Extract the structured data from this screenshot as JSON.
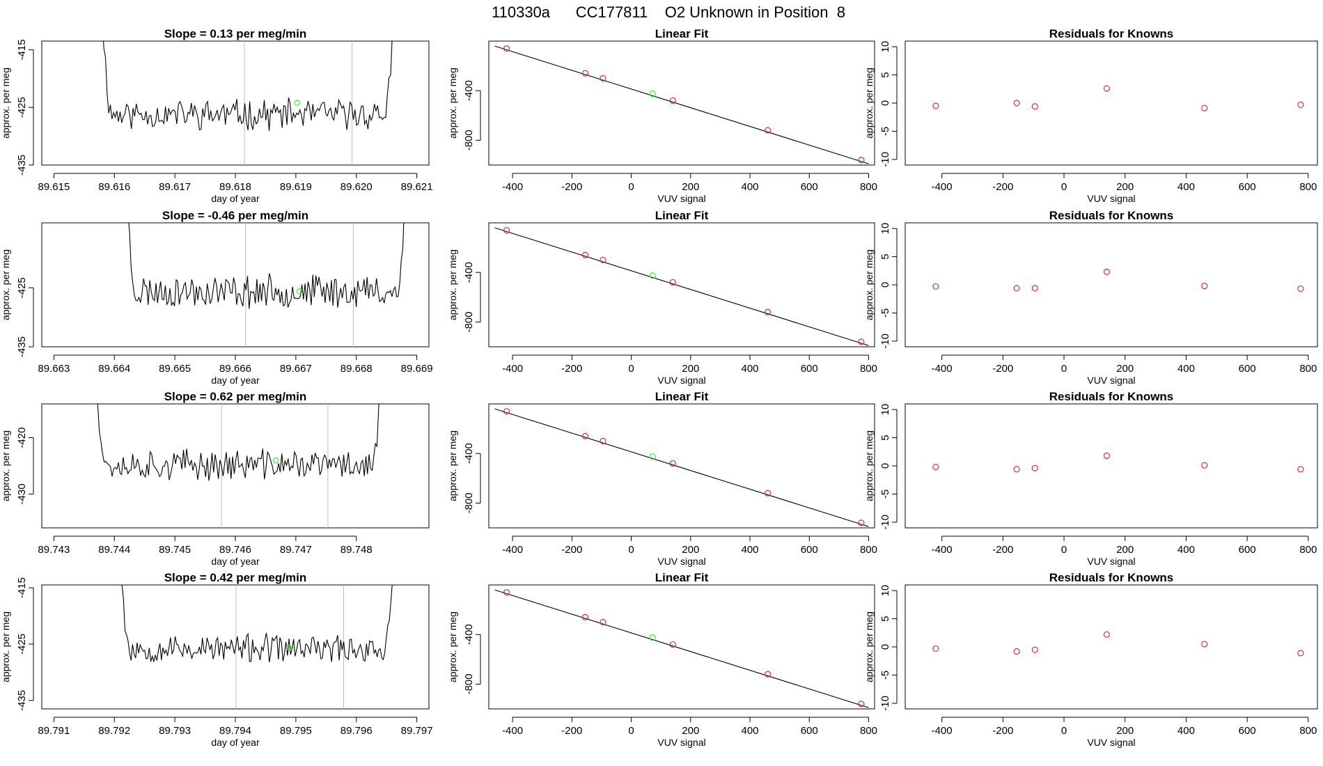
{
  "page_title": "110330a      CC177811    O2 Unknown in Position  8",
  "colors": {
    "trace": "#000000",
    "known_points": "#cc3333",
    "unknown_point": "#33ee33",
    "flag_lines": "#bbbbbb"
  },
  "chart_data": [
    {
      "type": "line",
      "title": "Slope =  0.13  per meg/min",
      "xlabel": "day of year",
      "ylabel": "approx. per meg",
      "xlim": [
        89.6148,
        89.6212
      ],
      "ylim": [
        -435,
        -413.5
      ],
      "xticks": [
        89.615,
        89.616,
        89.617,
        89.618,
        89.619,
        89.62,
        89.621
      ],
      "xtick_labels": [
        "89.615",
        "89.616",
        "89.617",
        "89.618",
        "89.619",
        "89.620",
        "89.621"
      ],
      "yticks": [
        -415,
        -425,
        -435
      ],
      "ytick_labels": [
        "-415",
        "-425",
        "-435"
      ],
      "flag_lines_x": [
        89.61815,
        89.61993
      ],
      "trace_start": 89.6158,
      "trace_end": 89.62062,
      "trace_level": -426.2,
      "trace_noise": 2.2,
      "trace_seed": 11,
      "unknown_point": {
        "x": 89.61902,
        "y": -424.2
      }
    },
    {
      "type": "scatter",
      "title": "Linear Fit",
      "xlabel": "VUV signal",
      "ylabel": "approx. per meg",
      "xlim": [
        -480,
        820
      ],
      "ylim": [
        -1000,
        0
      ],
      "xticks": [
        -400,
        -200,
        0,
        200,
        400,
        600,
        800
      ],
      "xtick_labels": [
        "-400",
        "-200",
        "0",
        "200",
        "400",
        "600",
        "800"
      ],
      "yticks": [
        -400,
        -800
      ],
      "ytick_labels": [
        "-400",
        "-800"
      ],
      "fit_line": {
        "x": [
          -460,
          800
        ],
        "y": [
          -40,
          -990
        ]
      },
      "points": [
        {
          "x": -420,
          "y": -60
        },
        {
          "x": -155,
          "y": -260
        },
        {
          "x": -95,
          "y": -300
        },
        {
          "x": 140,
          "y": -480
        },
        {
          "x": 460,
          "y": -720
        },
        {
          "x": 775,
          "y": -960
        }
      ],
      "unknown_point": {
        "x": 72,
        "y": -425
      }
    },
    {
      "type": "scatter",
      "title": "Residuals for Knowns",
      "xlabel": "VUV signal",
      "ylabel": "approx. per meg",
      "xlim": [
        -520,
        830
      ],
      "ylim": [
        -11,
        11
      ],
      "xticks": [
        -400,
        -200,
        0,
        200,
        400,
        600,
        800
      ],
      "xtick_labels": [
        "-400",
        "-200",
        "0",
        "200",
        "400",
        "600",
        "800"
      ],
      "yticks": [
        10,
        5,
        0,
        -5,
        -10
      ],
      "ytick_labels": [
        "10",
        "5",
        "0",
        "-5",
        "-10"
      ],
      "points": [
        {
          "x": -420,
          "y": -0.5
        },
        {
          "x": -155,
          "y": 0.0
        },
        {
          "x": -95,
          "y": -0.6
        },
        {
          "x": 140,
          "y": 2.6
        },
        {
          "x": 460,
          "y": -0.9
        },
        {
          "x": 775,
          "y": -0.3
        }
      ]
    },
    {
      "type": "line",
      "title": "Slope =  -0.46  per meg/min",
      "xlabel": "day of year",
      "ylabel": "approx. per meg",
      "xlim": [
        89.6628,
        89.6692
      ],
      "ylim": [
        -435,
        -414
      ],
      "xticks": [
        89.663,
        89.664,
        89.665,
        89.666,
        89.667,
        89.668,
        89.669
      ],
      "xtick_labels": [
        "89.663",
        "89.664",
        "89.665",
        "89.666",
        "89.667",
        "89.668",
        "89.669"
      ],
      "yticks": [
        -425,
        -435
      ],
      "ytick_labels": [
        "-425",
        "-435"
      ],
      "flag_lines_x": [
        89.66617,
        89.66795
      ],
      "trace_start": 89.6642,
      "trace_end": 89.66882,
      "trace_level": -425.6,
      "trace_noise": 2.4,
      "trace_seed": 23,
      "unknown_point": {
        "x": 89.66706,
        "y": -425.6
      }
    },
    {
      "type": "scatter",
      "title": "Linear Fit",
      "xlabel": "VUV signal",
      "ylabel": "approx. per meg",
      "xlim": [
        -480,
        820
      ],
      "ylim": [
        -1000,
        0
      ],
      "xticks": [
        -400,
        -200,
        0,
        200,
        400,
        600,
        800
      ],
      "xtick_labels": [
        "-400",
        "-200",
        "0",
        "200",
        "400",
        "600",
        "800"
      ],
      "yticks": [
        -400,
        -800
      ],
      "ytick_labels": [
        "-400",
        "-800"
      ],
      "fit_line": {
        "x": [
          -460,
          800
        ],
        "y": [
          -40,
          -990
        ]
      },
      "points": [
        {
          "x": -420,
          "y": -60
        },
        {
          "x": -155,
          "y": -260
        },
        {
          "x": -95,
          "y": -300
        },
        {
          "x": 140,
          "y": -480
        },
        {
          "x": 460,
          "y": -720
        },
        {
          "x": 775,
          "y": -960
        }
      ],
      "unknown_point": {
        "x": 72,
        "y": -425
      }
    },
    {
      "type": "scatter",
      "title": "Residuals for Knowns",
      "xlabel": "VUV signal",
      "ylabel": "approx. per meg",
      "xlim": [
        -520,
        830
      ],
      "ylim": [
        -11,
        11
      ],
      "xticks": [
        -400,
        -200,
        0,
        200,
        400,
        600,
        800
      ],
      "xtick_labels": [
        "-400",
        "-200",
        "0",
        "200",
        "400",
        "600",
        "800"
      ],
      "yticks": [
        10,
        5,
        0,
        -5,
        -10
      ],
      "ytick_labels": [
        "10",
        "5",
        "0",
        "-5",
        "-10"
      ],
      "points": [
        {
          "x": -420,
          "y": -0.3
        },
        {
          "x": -155,
          "y": -0.6
        },
        {
          "x": -95,
          "y": -0.6
        },
        {
          "x": 140,
          "y": 2.3
        },
        {
          "x": 460,
          "y": -0.2
        },
        {
          "x": 775,
          "y": -0.7
        }
      ]
    },
    {
      "type": "line",
      "title": "Slope =  0.62  per meg/min",
      "xlabel": "day of year",
      "ylabel": "approx. per meg",
      "xlim": [
        89.7428,
        89.7492
      ],
      "ylim": [
        -436,
        -414
      ],
      "xticks": [
        89.743,
        89.744,
        89.745,
        89.746,
        89.747,
        89.748
      ],
      "xtick_labels": [
        "89.743",
        "89.744",
        "89.745",
        "89.746",
        "89.747",
        "89.748"
      ],
      "yticks": [
        -420,
        -430
      ],
      "ytick_labels": [
        "-420",
        "-430"
      ],
      "flag_lines_x": [
        89.74577,
        89.74753
      ],
      "trace_start": 89.7437,
      "trace_end": 89.74842,
      "trace_level": -424.8,
      "trace_noise": 2.3,
      "trace_seed": 37,
      "unknown_point": {
        "x": 89.74667,
        "y": -424.0
      }
    },
    {
      "type": "scatter",
      "title": "Linear Fit",
      "xlabel": "VUV signal",
      "ylabel": "approx. per meg",
      "xlim": [
        -480,
        820
      ],
      "ylim": [
        -1000,
        0
      ],
      "xticks": [
        -400,
        -200,
        0,
        200,
        400,
        600,
        800
      ],
      "xtick_labels": [
        "-400",
        "-200",
        "0",
        "200",
        "400",
        "600",
        "800"
      ],
      "yticks": [
        -400,
        -800
      ],
      "ytick_labels": [
        "-400",
        "-800"
      ],
      "fit_line": {
        "x": [
          -460,
          800
        ],
        "y": [
          -40,
          -990
        ]
      },
      "points": [
        {
          "x": -420,
          "y": -60
        },
        {
          "x": -155,
          "y": -260
        },
        {
          "x": -95,
          "y": -300
        },
        {
          "x": 140,
          "y": -480
        },
        {
          "x": 460,
          "y": -720
        },
        {
          "x": 775,
          "y": -960
        }
      ],
      "unknown_point": {
        "x": 72,
        "y": -425
      }
    },
    {
      "type": "scatter",
      "title": "Residuals for Knowns",
      "xlabel": "VUV signal",
      "ylabel": "approx. per meg",
      "xlim": [
        -520,
        830
      ],
      "ylim": [
        -11,
        11
      ],
      "xticks": [
        -400,
        -200,
        0,
        200,
        400,
        600,
        800
      ],
      "xtick_labels": [
        "-400",
        "-200",
        "0",
        "200",
        "400",
        "600",
        "800"
      ],
      "yticks": [
        10,
        5,
        0,
        -5,
        -10
      ],
      "ytick_labels": [
        "10",
        "5",
        "0",
        "-5",
        "-10"
      ],
      "points": [
        {
          "x": -420,
          "y": -0.2
        },
        {
          "x": -155,
          "y": -0.6
        },
        {
          "x": -95,
          "y": -0.4
        },
        {
          "x": 140,
          "y": 1.8
        },
        {
          "x": 460,
          "y": 0.1
        },
        {
          "x": 775,
          "y": -0.6
        }
      ]
    },
    {
      "type": "line",
      "title": "Slope =  0.42  per meg/min",
      "xlabel": "day of year",
      "ylabel": "approx. per meg",
      "xlim": [
        89.7908,
        89.7972
      ],
      "ylim": [
        -436.5,
        -414.5
      ],
      "xticks": [
        89.791,
        89.792,
        89.793,
        89.794,
        89.795,
        89.796,
        89.797
      ],
      "xtick_labels": [
        "89.791",
        "89.792",
        "89.793",
        "89.794",
        "89.795",
        "89.796",
        "89.797"
      ],
      "yticks": [
        -415,
        -425,
        -435
      ],
      "ytick_labels": [
        "-415",
        "-425",
        "-435"
      ],
      "flag_lines_x": [
        89.79401,
        89.79579
      ],
      "trace_start": 89.7921,
      "trace_end": 89.79662,
      "trace_level": -425.8,
      "trace_noise": 2.1,
      "trace_seed": 53,
      "unknown_point": {
        "x": 89.79488,
        "y": -425.6
      }
    },
    {
      "type": "scatter",
      "title": "Linear Fit",
      "xlabel": "VUV signal",
      "ylabel": "approx. per meg",
      "xlim": [
        -480,
        820
      ],
      "ylim": [
        -1000,
        0
      ],
      "xticks": [
        -400,
        -200,
        0,
        200,
        400,
        600,
        800
      ],
      "xtick_labels": [
        "-400",
        "-200",
        "0",
        "200",
        "400",
        "600",
        "800"
      ],
      "yticks": [
        -400,
        -800
      ],
      "ytick_labels": [
        "-400",
        "-800"
      ],
      "fit_line": {
        "x": [
          -460,
          800
        ],
        "y": [
          -40,
          -990
        ]
      },
      "points": [
        {
          "x": -420,
          "y": -60
        },
        {
          "x": -155,
          "y": -260
        },
        {
          "x": -95,
          "y": -300
        },
        {
          "x": 140,
          "y": -480
        },
        {
          "x": 460,
          "y": -720
        },
        {
          "x": 775,
          "y": -960
        }
      ],
      "unknown_point": {
        "x": 72,
        "y": -425
      }
    },
    {
      "type": "scatter",
      "title": "Residuals for Knowns",
      "xlabel": "VUV signal",
      "ylabel": "approx. per meg",
      "xlim": [
        -520,
        830
      ],
      "ylim": [
        -11,
        11
      ],
      "xticks": [
        -400,
        -200,
        0,
        200,
        400,
        600,
        800
      ],
      "xtick_labels": [
        "-400",
        "-200",
        "0",
        "200",
        "400",
        "600",
        "800"
      ],
      "yticks": [
        10,
        5,
        0,
        -5,
        -10
      ],
      "ytick_labels": [
        "10",
        "5",
        "0",
        "-5",
        "-10"
      ],
      "points": [
        {
          "x": -420,
          "y": -0.3
        },
        {
          "x": -155,
          "y": -0.8
        },
        {
          "x": -95,
          "y": -0.5
        },
        {
          "x": 140,
          "y": 2.2
        },
        {
          "x": 460,
          "y": 0.5
        },
        {
          "x": 775,
          "y": -1.1
        }
      ]
    }
  ]
}
